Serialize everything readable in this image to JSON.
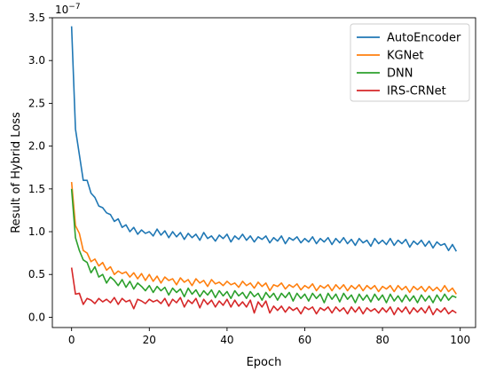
{
  "chart_data": {
    "type": "line",
    "xlabel": "Epoch",
    "ylabel": "Result of Hybrid Loss",
    "y_multiplier": "1e-7",
    "xlim": [
      -4.95,
      103.95
    ],
    "ylim": [
      -0.12,
      3.5
    ],
    "x_ticks": [
      0,
      20,
      40,
      60,
      80,
      100
    ],
    "x_tick_labels": [
      "0",
      "20",
      "40",
      "60",
      "80",
      "100"
    ],
    "y_ticks": [
      0.0,
      0.5,
      1.0,
      1.5,
      2.0,
      2.5,
      3.0,
      3.5
    ],
    "y_tick_labels": [
      "0.0",
      "0.5",
      "1.0",
      "1.5",
      "2.0",
      "2.5",
      "3.0",
      "3.5"
    ],
    "grid": false,
    "legend": "top-right",
    "x": [
      0,
      1,
      2,
      3,
      4,
      5,
      6,
      7,
      8,
      9,
      10,
      11,
      12,
      13,
      14,
      15,
      16,
      17,
      18,
      19,
      20,
      21,
      22,
      23,
      24,
      25,
      26,
      27,
      28,
      29,
      30,
      31,
      32,
      33,
      34,
      35,
      36,
      37,
      38,
      39,
      40,
      41,
      42,
      43,
      44,
      45,
      46,
      47,
      48,
      49,
      50,
      51,
      52,
      53,
      54,
      55,
      56,
      57,
      58,
      59,
      60,
      61,
      62,
      63,
      64,
      65,
      66,
      67,
      68,
      69,
      70,
      71,
      72,
      73,
      74,
      75,
      76,
      77,
      78,
      79,
      80,
      81,
      82,
      83,
      84,
      85,
      86,
      87,
      88,
      89,
      90,
      91,
      92,
      93,
      94,
      95,
      96,
      97,
      98,
      99
    ],
    "series": [
      {
        "name": "AutoEncoder",
        "color": "#1f77b4",
        "values": [
          3.4,
          2.2,
          1.9,
          1.6,
          1.6,
          1.45,
          1.4,
          1.3,
          1.28,
          1.22,
          1.2,
          1.12,
          1.15,
          1.05,
          1.08,
          1.0,
          1.05,
          0.97,
          1.02,
          0.98,
          1.0,
          0.95,
          1.03,
          0.96,
          1.01,
          0.93,
          1.0,
          0.94,
          0.99,
          0.91,
          0.98,
          0.93,
          0.97,
          0.9,
          0.99,
          0.92,
          0.95,
          0.89,
          0.96,
          0.92,
          0.97,
          0.88,
          0.95,
          0.91,
          0.97,
          0.9,
          0.95,
          0.88,
          0.94,
          0.91,
          0.95,
          0.87,
          0.93,
          0.89,
          0.95,
          0.86,
          0.93,
          0.9,
          0.94,
          0.87,
          0.92,
          0.88,
          0.94,
          0.86,
          0.92,
          0.88,
          0.93,
          0.85,
          0.92,
          0.87,
          0.93,
          0.86,
          0.91,
          0.84,
          0.92,
          0.87,
          0.9,
          0.83,
          0.92,
          0.86,
          0.9,
          0.85,
          0.92,
          0.84,
          0.9,
          0.86,
          0.91,
          0.82,
          0.89,
          0.85,
          0.9,
          0.83,
          0.89,
          0.81,
          0.88,
          0.84,
          0.86,
          0.78,
          0.85,
          0.77
        ]
      },
      {
        "name": "KGNet",
        "color": "#ff7f0e",
        "values": [
          1.58,
          1.07,
          0.98,
          0.78,
          0.75,
          0.65,
          0.68,
          0.6,
          0.64,
          0.55,
          0.59,
          0.5,
          0.54,
          0.51,
          0.53,
          0.47,
          0.52,
          0.45,
          0.51,
          0.43,
          0.5,
          0.42,
          0.48,
          0.4,
          0.47,
          0.43,
          0.45,
          0.38,
          0.46,
          0.41,
          0.44,
          0.37,
          0.45,
          0.4,
          0.43,
          0.36,
          0.44,
          0.39,
          0.41,
          0.37,
          0.42,
          0.38,
          0.4,
          0.35,
          0.42,
          0.37,
          0.4,
          0.34,
          0.41,
          0.36,
          0.4,
          0.31,
          0.38,
          0.36,
          0.4,
          0.33,
          0.38,
          0.35,
          0.39,
          0.32,
          0.37,
          0.34,
          0.39,
          0.31,
          0.37,
          0.34,
          0.38,
          0.31,
          0.38,
          0.33,
          0.38,
          0.31,
          0.37,
          0.33,
          0.38,
          0.31,
          0.37,
          0.33,
          0.37,
          0.3,
          0.36,
          0.33,
          0.37,
          0.3,
          0.37,
          0.32,
          0.36,
          0.29,
          0.36,
          0.32,
          0.36,
          0.3,
          0.36,
          0.31,
          0.35,
          0.3,
          0.37,
          0.3,
          0.34,
          0.27
        ]
      },
      {
        "name": "DNN",
        "color": "#2ca02c",
        "values": [
          1.5,
          0.93,
          0.78,
          0.67,
          0.64,
          0.52,
          0.59,
          0.47,
          0.5,
          0.4,
          0.47,
          0.43,
          0.37,
          0.44,
          0.35,
          0.42,
          0.33,
          0.4,
          0.36,
          0.31,
          0.37,
          0.29,
          0.36,
          0.31,
          0.35,
          0.26,
          0.34,
          0.29,
          0.33,
          0.24,
          0.34,
          0.27,
          0.32,
          0.24,
          0.31,
          0.26,
          0.32,
          0.23,
          0.31,
          0.25,
          0.3,
          0.22,
          0.31,
          0.25,
          0.29,
          0.22,
          0.3,
          0.24,
          0.28,
          0.2,
          0.29,
          0.23,
          0.28,
          0.2,
          0.28,
          0.23,
          0.29,
          0.19,
          0.28,
          0.22,
          0.27,
          0.19,
          0.28,
          0.22,
          0.27,
          0.17,
          0.28,
          0.21,
          0.27,
          0.18,
          0.28,
          0.21,
          0.26,
          0.17,
          0.27,
          0.2,
          0.26,
          0.18,
          0.27,
          0.2,
          0.26,
          0.17,
          0.27,
          0.19,
          0.25,
          0.18,
          0.26,
          0.19,
          0.25,
          0.17,
          0.26,
          0.19,
          0.25,
          0.17,
          0.26,
          0.19,
          0.27,
          0.2,
          0.25,
          0.23
        ]
      },
      {
        "name": "IRS-CRNet",
        "color": "#d62728",
        "values": [
          0.58,
          0.27,
          0.28,
          0.15,
          0.22,
          0.2,
          0.16,
          0.22,
          0.18,
          0.21,
          0.17,
          0.23,
          0.15,
          0.22,
          0.18,
          0.2,
          0.1,
          0.21,
          0.19,
          0.16,
          0.21,
          0.18,
          0.2,
          0.16,
          0.22,
          0.13,
          0.21,
          0.17,
          0.23,
          0.12,
          0.2,
          0.16,
          0.22,
          0.11,
          0.21,
          0.15,
          0.2,
          0.12,
          0.19,
          0.14,
          0.21,
          0.12,
          0.2,
          0.13,
          0.18,
          0.12,
          0.2,
          0.05,
          0.18,
          0.12,
          0.19,
          0.05,
          0.13,
          0.08,
          0.13,
          0.06,
          0.12,
          0.08,
          0.11,
          0.04,
          0.12,
          0.09,
          0.12,
          0.04,
          0.11,
          0.08,
          0.12,
          0.05,
          0.12,
          0.07,
          0.11,
          0.04,
          0.12,
          0.06,
          0.12,
          0.04,
          0.11,
          0.07,
          0.1,
          0.05,
          0.11,
          0.06,
          0.12,
          0.03,
          0.11,
          0.06,
          0.12,
          0.04,
          0.11,
          0.06,
          0.11,
          0.05,
          0.13,
          0.03,
          0.1,
          0.06,
          0.11,
          0.04,
          0.08,
          0.05
        ]
      }
    ]
  }
}
